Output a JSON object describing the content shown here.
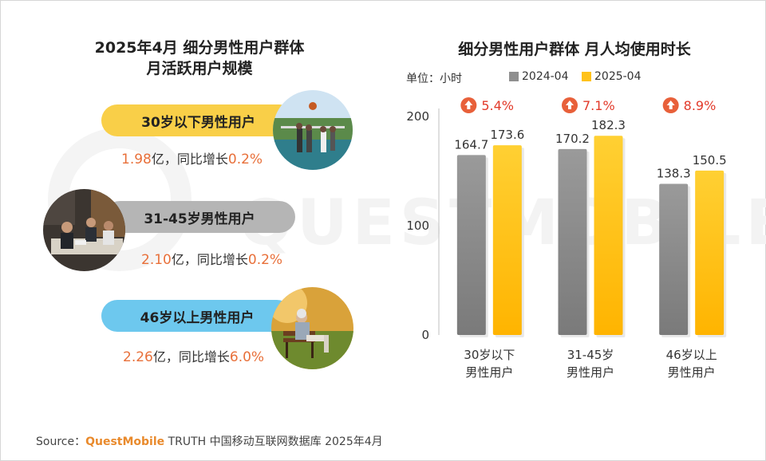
{
  "left": {
    "title_line1": "2025年4月 细分男性用户群体",
    "title_line2": "月活跃用户规模",
    "groups": [
      {
        "label": "30岁以下男性用户",
        "value": "1.98",
        "unit": "亿，同比增长",
        "growth": "0.2%",
        "color": "#f9cf48"
      },
      {
        "label": "31-45岁男性用户",
        "value": "2.10",
        "unit": "亿，同比增长",
        "growth": "0.2%",
        "color": "#b5b5b5"
      },
      {
        "label": "46岁以上男性用户",
        "value": "2.26",
        "unit": "亿，同比增长",
        "growth": "6.0%",
        "color": "#6dc8ee"
      }
    ]
  },
  "right": {
    "title": "细分男性用户群体 月人均使用时长",
    "unit_label": "单位：小时",
    "legend": [
      {
        "name": "2024-04",
        "color": "#8f8f8f"
      },
      {
        "name": "2025-04",
        "color": "#ffc21a"
      }
    ]
  },
  "chart_data": {
    "type": "bar",
    "title": "细分男性用户群体 月人均使用时长",
    "ylabel": "单位：小时",
    "categories": [
      [
        "30岁以下",
        "男性用户"
      ],
      [
        "31-45岁",
        "男性用户"
      ],
      [
        "46岁以上",
        "男性用户"
      ]
    ],
    "series": [
      {
        "name": "2024-04",
        "values": [
          164.7,
          170.2,
          138.3
        ],
        "color": "#8f8f8f"
      },
      {
        "name": "2025-04",
        "values": [
          173.6,
          182.3,
          150.5
        ],
        "color": "#ffc21a"
      }
    ],
    "growth": [
      "5.4%",
      "7.1%",
      "8.9%"
    ],
    "ylim": [
      0,
      200
    ],
    "yticks": [
      0,
      100,
      200
    ],
    "grid": false,
    "legend_position": "top"
  },
  "watermark": "QUESTMOBILE",
  "source": {
    "prefix": "Source：",
    "brand": "QuestMobile",
    "rest": " TRUTH 中国移动互联网数据库 2025年4月"
  }
}
